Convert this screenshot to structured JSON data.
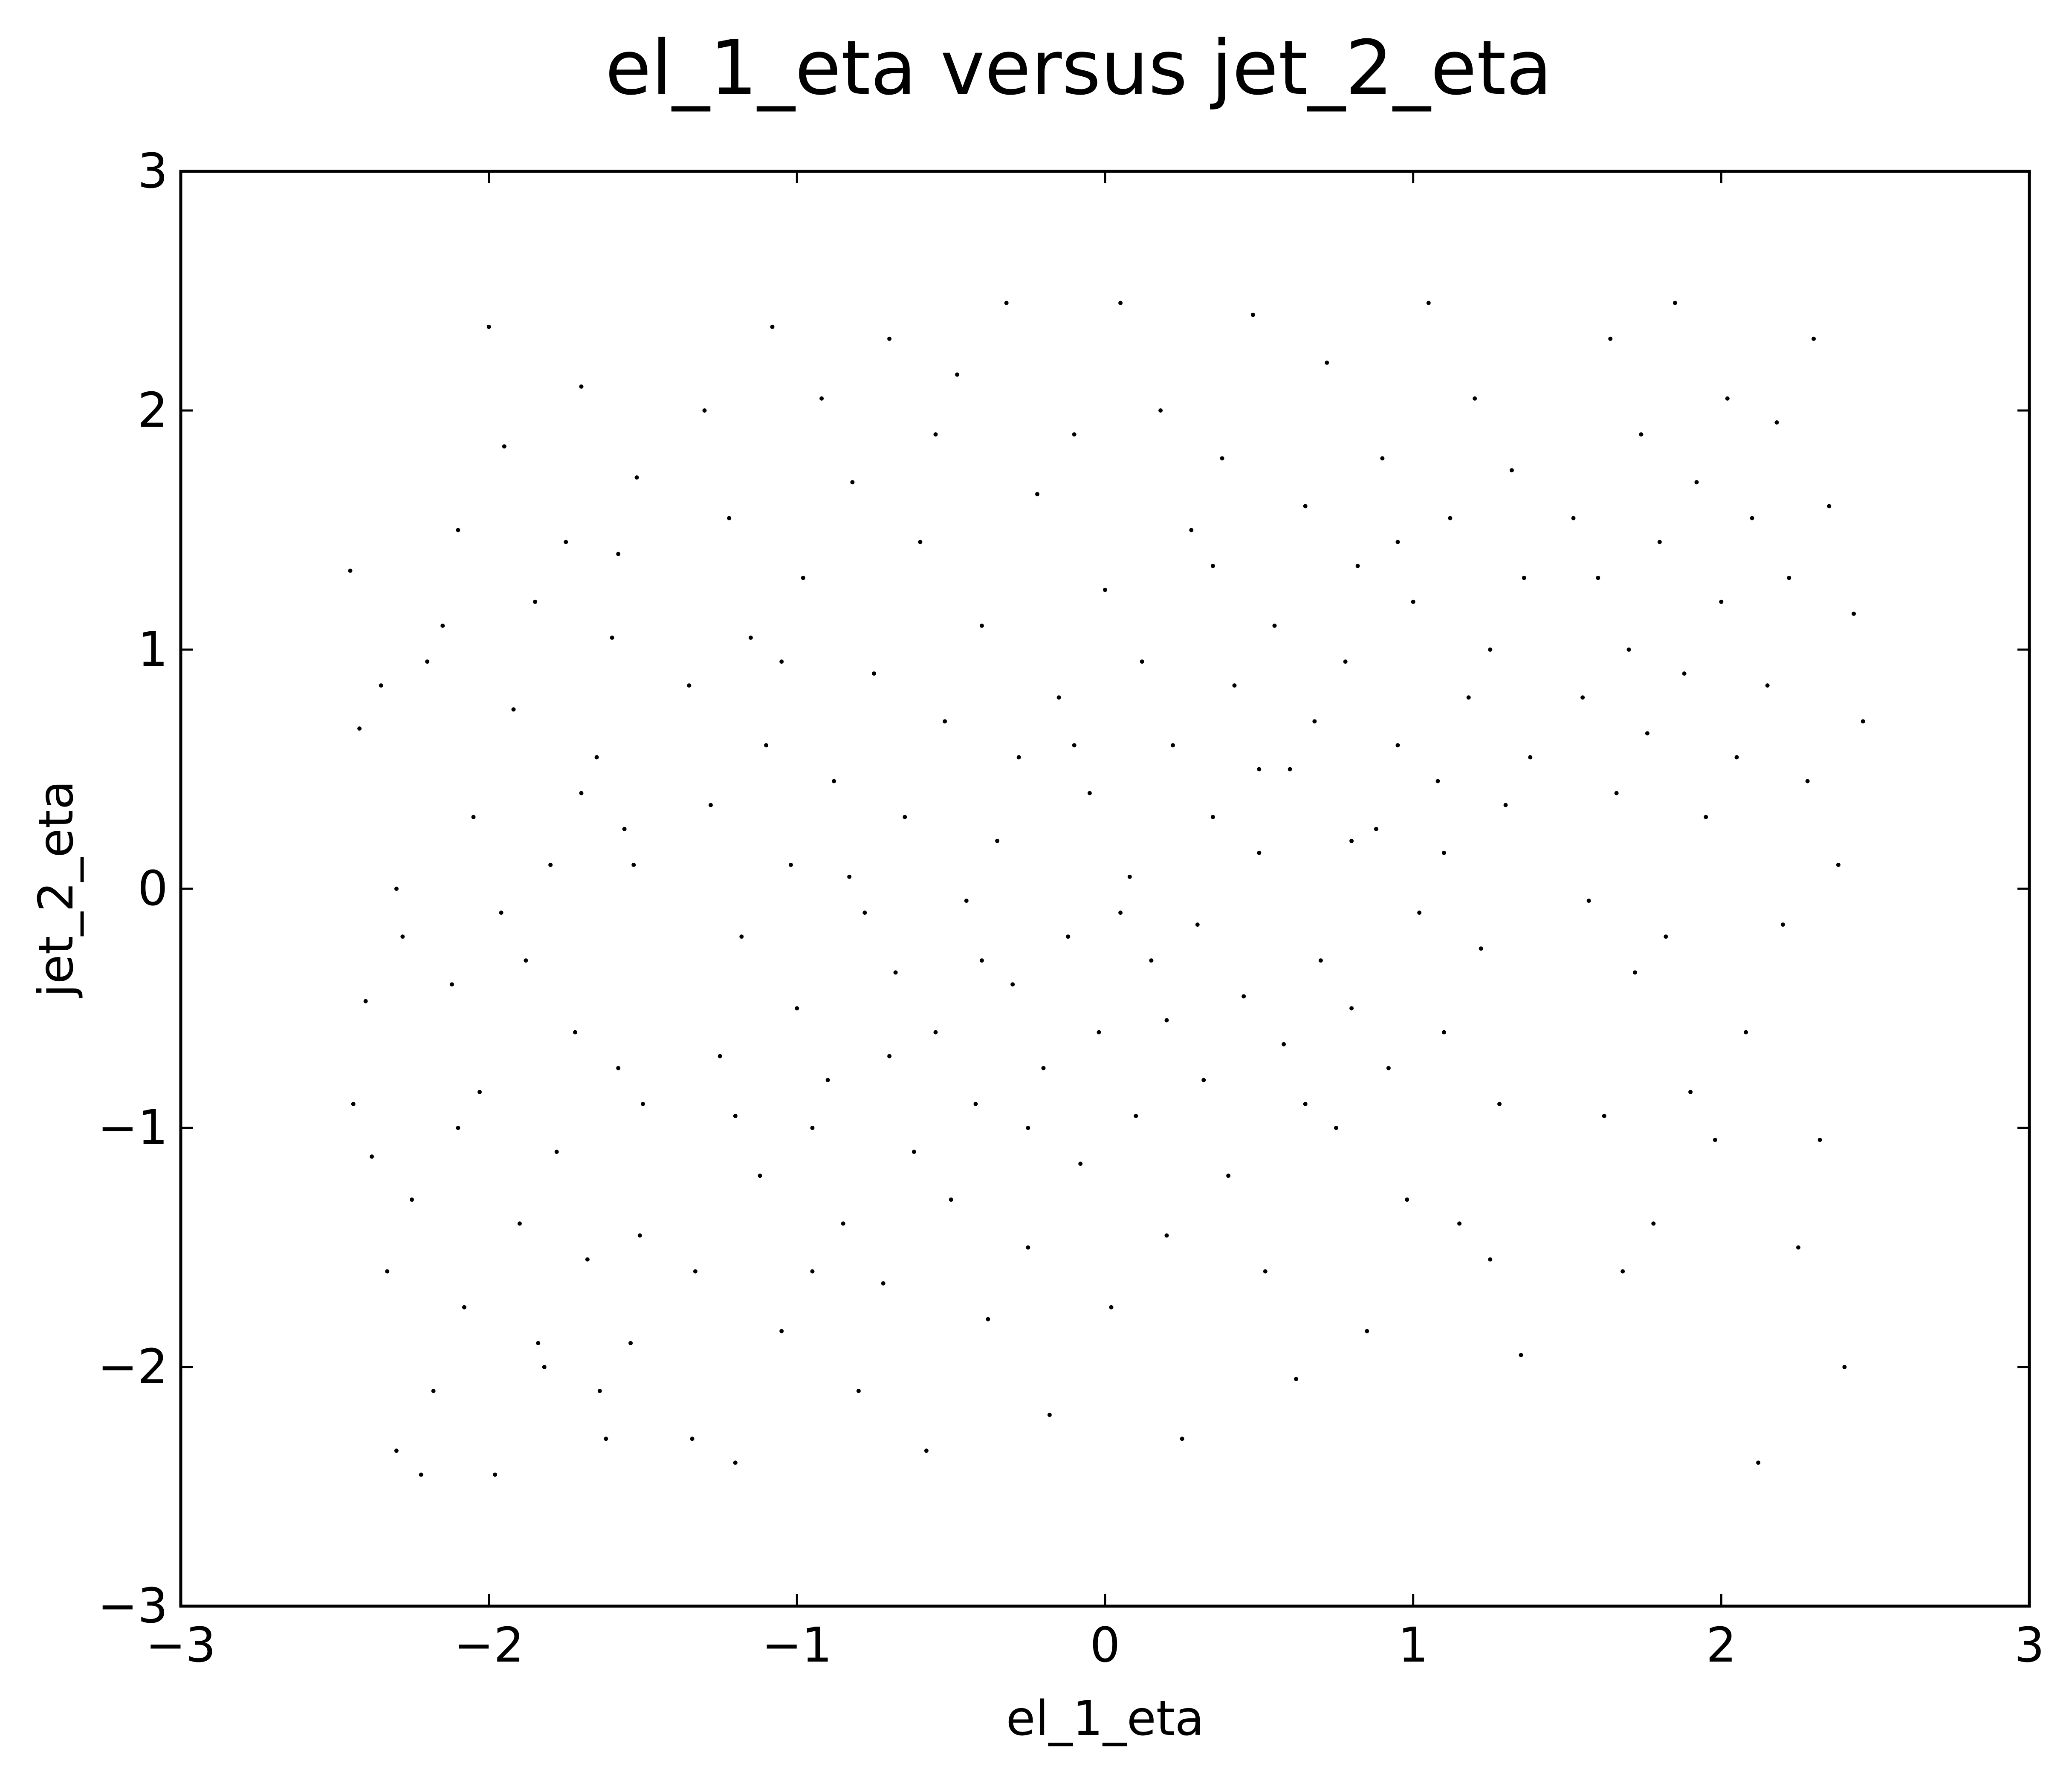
{
  "chart_data": {
    "type": "scatter",
    "title": "el_1_eta versus jet_2_eta",
    "xlabel": "el_1_eta",
    "ylabel": "jet_2_eta",
    "xlim": [
      -3,
      3
    ],
    "ylim": [
      -3,
      3
    ],
    "x_ticks": [
      -3,
      -2,
      -1,
      0,
      1,
      2,
      3
    ],
    "y_ticks": [
      -3,
      -2,
      -1,
      0,
      1,
      2,
      3
    ],
    "x_tick_labels": [
      "−3",
      "−2",
      "−1",
      "0",
      "1",
      "2",
      "3"
    ],
    "y_tick_labels": [
      "−3",
      "−2",
      "−1",
      "0",
      "1",
      "2",
      "3"
    ],
    "grid": false,
    "marker_color": "#000000",
    "series": [
      {
        "points": [
          [
            -2.45,
            1.33
          ],
          [
            -2.42,
            0.67
          ],
          [
            -2.4,
            -0.47
          ],
          [
            -2.38,
            -1.12
          ],
          [
            -2.35,
            0.85
          ],
          [
            -2.33,
            -1.6
          ],
          [
            -2.3,
            -2.35
          ],
          [
            -2.28,
            -0.2
          ],
          [
            -2.25,
            -1.3
          ],
          [
            -2.2,
            0.95
          ],
          [
            -2.18,
            -2.1
          ],
          [
            -2.15,
            1.1
          ],
          [
            -2.12,
            -0.4
          ],
          [
            -2.1,
            1.5
          ],
          [
            -2.08,
            -1.75
          ],
          [
            -2.05,
            0.3
          ],
          [
            -2.03,
            -0.85
          ],
          [
            -2.0,
            2.35
          ],
          [
            -1.98,
            -2.45
          ],
          [
            -1.95,
            1.85
          ],
          [
            -1.92,
            0.75
          ],
          [
            -1.9,
            -1.4
          ],
          [
            -1.88,
            -0.3
          ],
          [
            -1.85,
            1.2
          ],
          [
            -1.82,
            -2.0
          ],
          [
            -1.8,
            0.1
          ],
          [
            -1.78,
            -1.1
          ],
          [
            -1.75,
            1.45
          ],
          [
            -1.72,
            -0.6
          ],
          [
            -1.7,
            2.1
          ],
          [
            -1.68,
            -1.55
          ],
          [
            -1.65,
            0.55
          ],
          [
            -1.62,
            -2.3
          ],
          [
            -1.6,
            1.05
          ],
          [
            -1.58,
            -0.75
          ],
          [
            -1.56,
            0.25
          ],
          [
            -1.54,
            -1.9
          ],
          [
            -1.52,
            1.72
          ],
          [
            -1.5,
            -0.9
          ],
          [
            -1.51,
            -1.45
          ],
          [
            -2.44,
            -0.9
          ],
          [
            -2.3,
            0.0
          ],
          [
            -2.22,
            -2.45
          ],
          [
            -2.1,
            -1.0
          ],
          [
            -1.96,
            -0.1
          ],
          [
            -1.84,
            -1.9
          ],
          [
            -1.7,
            0.4
          ],
          [
            -1.64,
            -2.1
          ],
          [
            -1.58,
            1.4
          ],
          [
            -1.53,
            0.1
          ],
          [
            -1.35,
            0.85
          ],
          [
            -1.33,
            -1.6
          ],
          [
            -1.3,
            2.0
          ],
          [
            -1.28,
            0.35
          ],
          [
            -1.25,
            -0.7
          ],
          [
            -1.22,
            1.55
          ],
          [
            -1.2,
            -2.4
          ],
          [
            -1.18,
            -0.2
          ],
          [
            -1.15,
            1.05
          ],
          [
            -1.12,
            -1.2
          ],
          [
            -1.1,
            0.6
          ],
          [
            -1.08,
            2.35
          ],
          [
            -1.05,
            -1.85
          ],
          [
            -1.02,
            0.1
          ],
          [
            -1.0,
            -0.5
          ],
          [
            -0.98,
            1.3
          ],
          [
            -0.95,
            -1.0
          ],
          [
            -0.92,
            2.05
          ],
          [
            -0.9,
            -0.8
          ],
          [
            -0.88,
            0.45
          ],
          [
            -0.85,
            -1.4
          ],
          [
            -0.82,
            1.7
          ],
          [
            -0.8,
            -2.1
          ],
          [
            -0.78,
            -0.1
          ],
          [
            -0.75,
            0.9
          ],
          [
            -0.72,
            -1.65
          ],
          [
            -0.7,
            2.3
          ],
          [
            -0.68,
            -0.35
          ],
          [
            -0.65,
            0.3
          ],
          [
            -0.62,
            -1.1
          ],
          [
            -0.6,
            1.45
          ],
          [
            -0.58,
            -2.35
          ],
          [
            -0.55,
            -0.6
          ],
          [
            -0.52,
            0.7
          ],
          [
            -0.5,
            -1.3
          ],
          [
            -0.48,
            2.15
          ],
          [
            -0.45,
            -0.05
          ],
          [
            -0.42,
            -0.9
          ],
          [
            -0.4,
            1.1
          ],
          [
            -0.38,
            -1.8
          ],
          [
            -0.35,
            0.2
          ],
          [
            -0.32,
            2.45
          ],
          [
            -0.3,
            -0.4
          ],
          [
            -0.28,
            0.55
          ],
          [
            -0.25,
            -1.5
          ],
          [
            -0.22,
            1.65
          ],
          [
            -0.2,
            -0.75
          ],
          [
            -0.18,
            -2.2
          ],
          [
            -0.15,
            0.8
          ],
          [
            -0.12,
            -0.2
          ],
          [
            -0.1,
            1.9
          ],
          [
            -0.08,
            -1.15
          ],
          [
            -0.05,
            0.4
          ],
          [
            -0.02,
            -0.6
          ],
          [
            0.0,
            1.25
          ],
          [
            0.02,
            -1.75
          ],
          [
            0.05,
            2.45
          ],
          [
            0.08,
            0.05
          ],
          [
            0.1,
            -0.95
          ],
          [
            0.12,
            0.95
          ],
          [
            0.15,
            -0.3
          ],
          [
            0.18,
            2.0
          ],
          [
            0.2,
            -1.45
          ],
          [
            0.22,
            0.6
          ],
          [
            0.25,
            -2.3
          ],
          [
            0.28,
            1.5
          ],
          [
            0.3,
            -0.15
          ],
          [
            0.32,
            -0.8
          ],
          [
            0.35,
            0.3
          ],
          [
            0.38,
            1.8
          ],
          [
            0.4,
            -1.2
          ],
          [
            0.42,
            0.85
          ],
          [
            0.45,
            -0.45
          ],
          [
            0.48,
            2.4
          ],
          [
            0.5,
            0.15
          ],
          [
            0.52,
            -1.6
          ],
          [
            0.55,
            1.1
          ],
          [
            0.58,
            -0.65
          ],
          [
            0.6,
            0.5
          ],
          [
            0.62,
            -2.05
          ],
          [
            0.65,
            1.6
          ],
          [
            0.68,
            0.7
          ],
          [
            0.7,
            -0.3
          ],
          [
            0.72,
            2.2
          ],
          [
            0.75,
            -1.0
          ],
          [
            0.78,
            0.95
          ],
          [
            0.8,
            -0.5
          ],
          [
            0.82,
            1.35
          ],
          [
            0.85,
            -1.85
          ],
          [
            0.88,
            0.25
          ],
          [
            0.9,
            1.8
          ],
          [
            0.92,
            -0.75
          ],
          [
            0.95,
            0.6
          ],
          [
            0.98,
            -1.3
          ],
          [
            1.0,
            1.2
          ],
          [
            1.02,
            -0.1
          ],
          [
            1.05,
            2.45
          ],
          [
            1.08,
            0.45
          ],
          [
            1.1,
            -0.6
          ],
          [
            1.12,
            1.55
          ],
          [
            1.15,
            -1.4
          ],
          [
            1.18,
            0.8
          ],
          [
            1.2,
            2.05
          ],
          [
            1.22,
            -0.25
          ],
          [
            1.25,
            1.0
          ],
          [
            1.28,
            -0.9
          ],
          [
            1.3,
            0.35
          ],
          [
            1.32,
            1.75
          ],
          [
            1.35,
            -1.95
          ],
          [
            1.38,
            0.55
          ],
          [
            -1.34,
            -2.3
          ],
          [
            -1.2,
            -0.95
          ],
          [
            -1.05,
            0.95
          ],
          [
            -0.95,
            -1.6
          ],
          [
            -0.83,
            0.05
          ],
          [
            -0.7,
            -0.7
          ],
          [
            -0.55,
            1.9
          ],
          [
            -0.4,
            -0.3
          ],
          [
            -0.25,
            -1.0
          ],
          [
            -0.1,
            0.6
          ],
          [
            0.05,
            -0.1
          ],
          [
            0.2,
            -0.55
          ],
          [
            0.35,
            1.35
          ],
          [
            0.5,
            0.5
          ],
          [
            0.65,
            -0.9
          ],
          [
            0.8,
            0.2
          ],
          [
            0.95,
            1.45
          ],
          [
            1.1,
            0.15
          ],
          [
            1.25,
            -1.55
          ],
          [
            1.36,
            1.3
          ],
          [
            1.52,
            1.55
          ],
          [
            1.55,
            0.8
          ],
          [
            1.57,
            -0.05
          ],
          [
            1.6,
            1.3
          ],
          [
            1.62,
            -0.95
          ],
          [
            1.64,
            2.3
          ],
          [
            1.66,
            0.4
          ],
          [
            1.68,
            -1.6
          ],
          [
            1.7,
            1.0
          ],
          [
            1.72,
            -0.35
          ],
          [
            1.74,
            1.9
          ],
          [
            1.76,
            0.65
          ],
          [
            1.78,
            -1.4
          ],
          [
            1.8,
            1.45
          ],
          [
            1.82,
            -0.2
          ],
          [
            1.85,
            2.45
          ],
          [
            1.88,
            0.9
          ],
          [
            1.9,
            -0.85
          ],
          [
            1.92,
            1.7
          ],
          [
            1.95,
            0.3
          ],
          [
            1.98,
            -1.05
          ],
          [
            2.0,
            1.2
          ],
          [
            2.02,
            2.05
          ],
          [
            2.05,
            0.55
          ],
          [
            2.08,
            -0.6
          ],
          [
            2.1,
            1.55
          ],
          [
            2.12,
            -2.4
          ],
          [
            2.15,
            0.85
          ],
          [
            2.18,
            1.95
          ],
          [
            2.2,
            -0.15
          ],
          [
            2.22,
            1.3
          ],
          [
            2.25,
            -1.5
          ],
          [
            2.28,
            0.45
          ],
          [
            2.3,
            2.3
          ],
          [
            2.32,
            -1.05
          ],
          [
            2.35,
            1.6
          ],
          [
            2.38,
            0.1
          ],
          [
            2.4,
            -2.0
          ],
          [
            2.43,
            1.15
          ],
          [
            2.46,
            0.7
          ]
        ]
      }
    ]
  }
}
